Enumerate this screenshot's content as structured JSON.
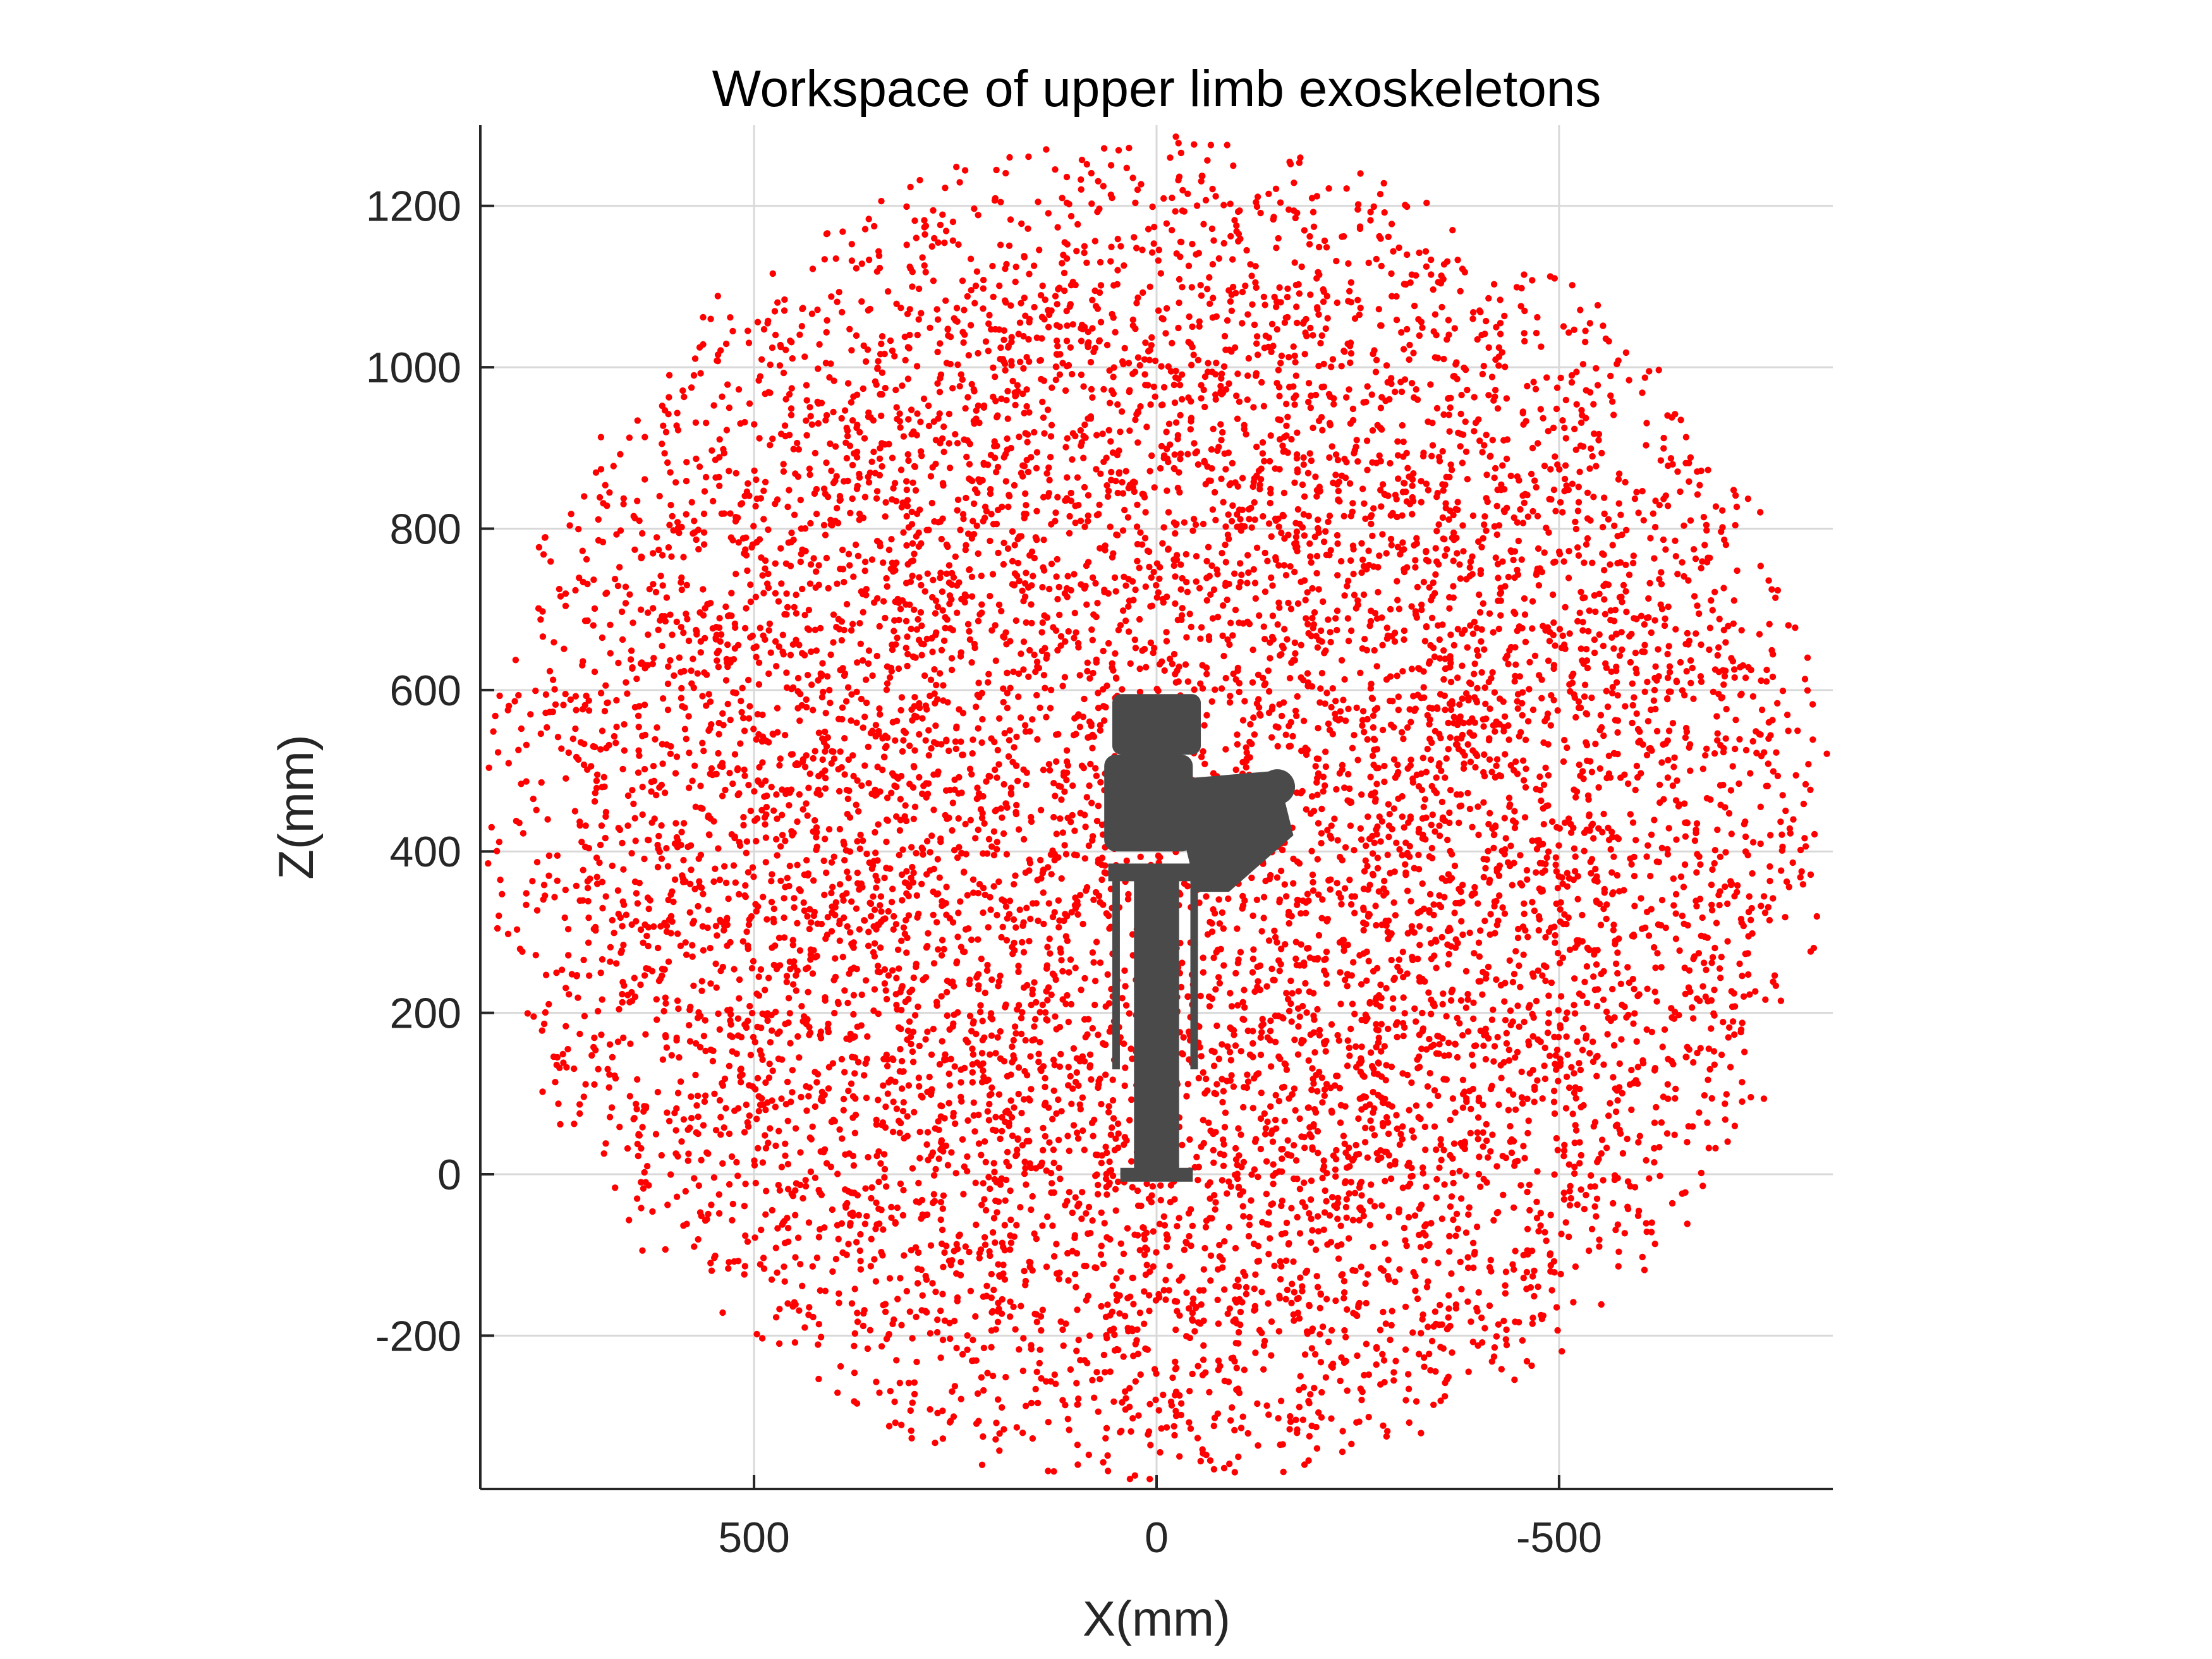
{
  "chart_data": {
    "type": "scatter",
    "title": "Workspace of upper limb exoskeletons",
    "xlabel": "X(mm)",
    "ylabel": "Z(mm)",
    "xlim": [
      840,
      -840
    ],
    "ylim": [
      -390,
      1300
    ],
    "x_reversed": true,
    "xticks": [
      500,
      0,
      -500
    ],
    "xtick_labels": [
      "500",
      "0",
      "-500"
    ],
    "yticks": [
      -200,
      0,
      200,
      400,
      600,
      800,
      1000,
      1200
    ],
    "ytick_labels": [
      "-200",
      "0",
      "200",
      "400",
      "600",
      "800",
      "1000",
      "1200"
    ],
    "grid": true,
    "point_color": "#ff0000",
    "series": [
      {
        "distribution": "random points filling a sphere-shaped reach envelope",
        "center": [
          0,
          450
        ],
        "radius": 840,
        "n_points": 9000
      }
    ],
    "overlay": {
      "icon": "exoskeleton-robot-icon",
      "color": "#4a4a4a",
      "x_range": [
        60,
        -160
      ],
      "z_range": [
        0,
        600
      ]
    }
  }
}
